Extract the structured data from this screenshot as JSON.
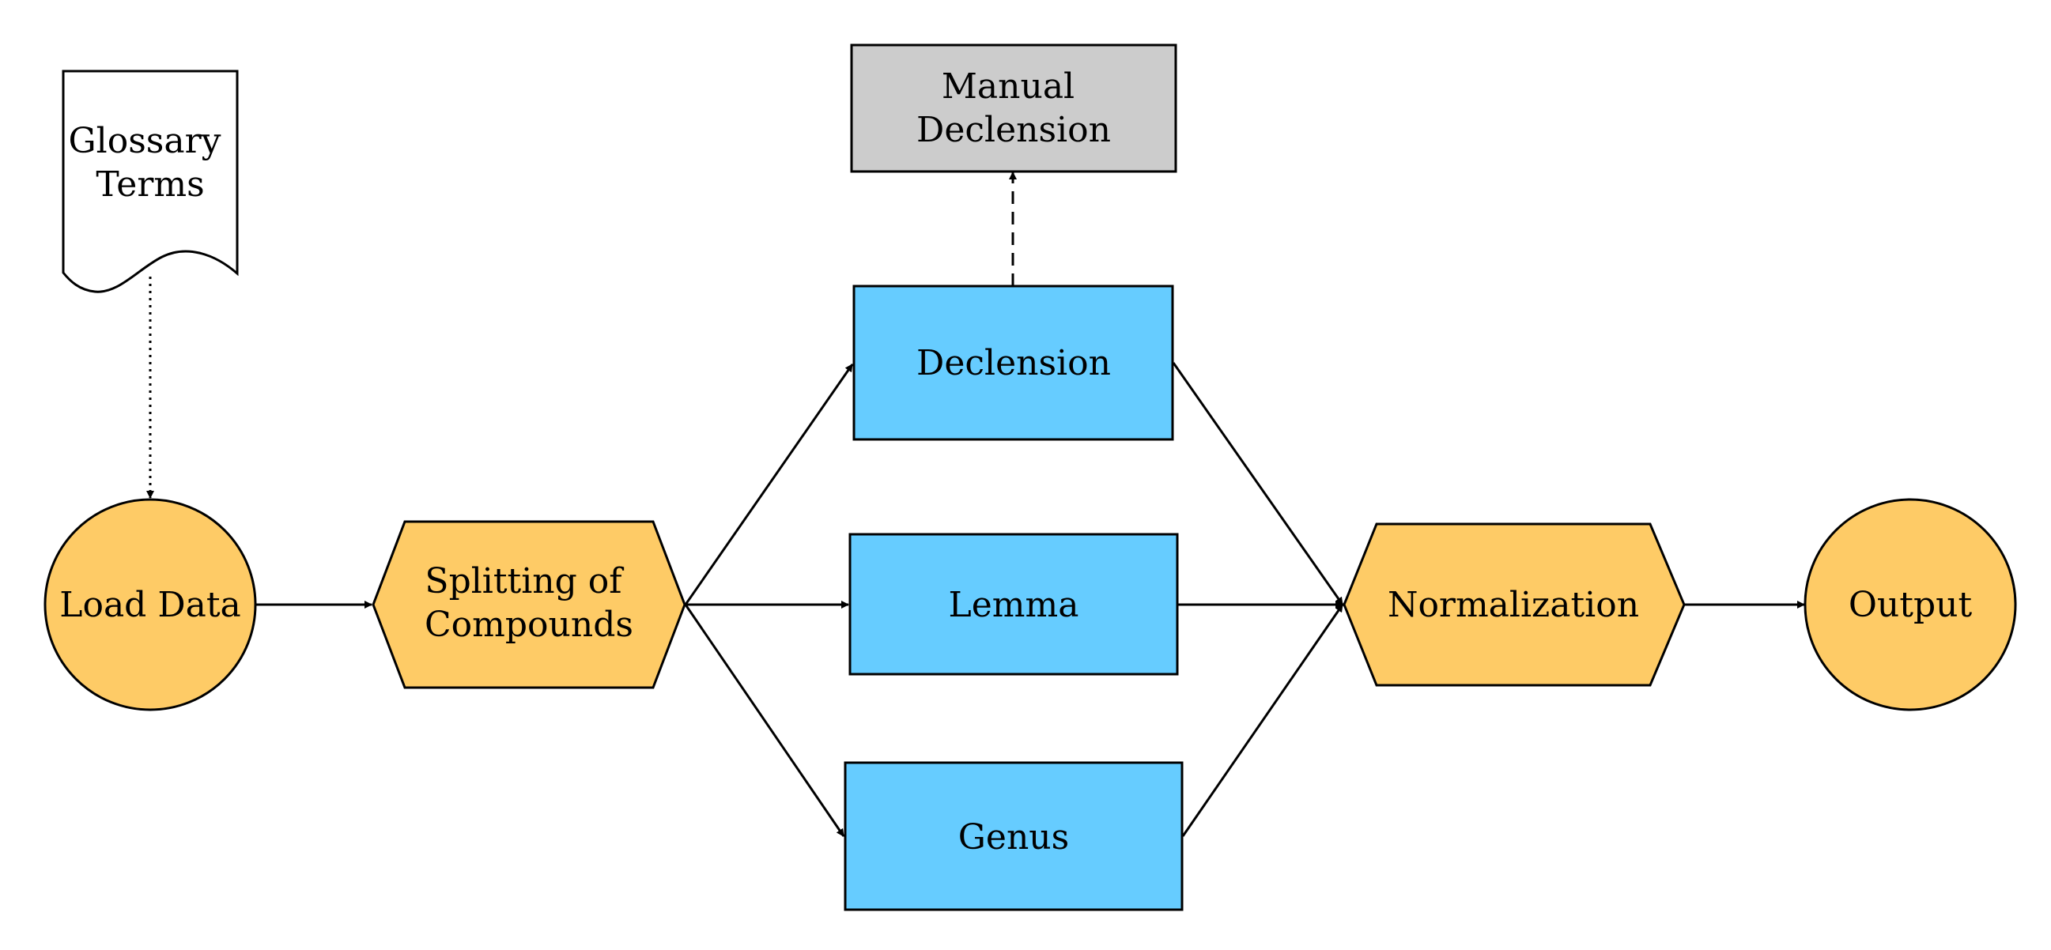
{
  "colors": {
    "process_orange": "#FECB66",
    "process_blue": "#66CCFF",
    "manual_gray": "#CCCCCC",
    "document_white": "#FFFFFF",
    "line": "#000000"
  },
  "nodes": {
    "glossary": {
      "lines": [
        "Glossary",
        "Terms"
      ],
      "shape": "document"
    },
    "load_data": {
      "lines": [
        "Load Data"
      ],
      "shape": "circle"
    },
    "splitting": {
      "lines": [
        "Splitting of",
        "Compounds"
      ],
      "shape": "hexagon"
    },
    "declension": {
      "lines": [
        "Declension"
      ],
      "shape": "rectangle"
    },
    "manual_declension": {
      "lines": [
        "Manual",
        "Declension"
      ],
      "shape": "rectangle"
    },
    "lemma": {
      "lines": [
        "Lemma"
      ],
      "shape": "rectangle"
    },
    "genus": {
      "lines": [
        "Genus"
      ],
      "shape": "rectangle"
    },
    "normalization": {
      "lines": [
        "Normalization"
      ],
      "shape": "hexagon"
    },
    "output": {
      "lines": [
        "Output"
      ],
      "shape": "circle"
    }
  },
  "edges": [
    {
      "from": "glossary",
      "to": "load_data",
      "style": "dotted"
    },
    {
      "from": "load_data",
      "to": "splitting",
      "style": "solid"
    },
    {
      "from": "splitting",
      "to": "declension",
      "style": "solid"
    },
    {
      "from": "splitting",
      "to": "lemma",
      "style": "solid"
    },
    {
      "from": "splitting",
      "to": "genus",
      "style": "solid"
    },
    {
      "from": "declension",
      "to": "manual_declension",
      "style": "dashed"
    },
    {
      "from": "declension",
      "to": "normalization",
      "style": "solid"
    },
    {
      "from": "lemma",
      "to": "normalization",
      "style": "solid"
    },
    {
      "from": "genus",
      "to": "normalization",
      "style": "solid"
    },
    {
      "from": "normalization",
      "to": "output",
      "style": "solid"
    }
  ]
}
